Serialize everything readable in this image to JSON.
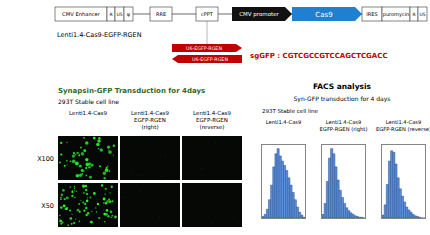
{
  "vector": {
    "elements": [
      "CMV Enhancer",
      "R",
      "U5",
      "ψ",
      "RRE",
      "cPPT",
      "CMV promoter",
      "Cas9",
      "IRES",
      "puromycin",
      "R",
      "U5"
    ],
    "label": "Lenti1.4-Cas9-EGFP-RGEN",
    "inserts": [
      "U6-EGFP-RGEN",
      "U6-EGFP-RGEN"
    ],
    "sgRNA": "sgGFP : CGTCGCCGTCCAGCTCGACC"
  },
  "microscopy": {
    "title": "Synapsin-GFP Transduction for 4days",
    "subtitle": "293T Stable cell line",
    "columns": [
      [
        "Lenti1.4-Cas9"
      ],
      [
        "Lenti1.4-Cas9",
        "EGFP-RGEN",
        "(right)"
      ],
      [
        "Lenti1.4-Cas9",
        "EGFP-RGEN",
        "(reverse)"
      ]
    ],
    "rows": [
      "X100",
      "X50"
    ]
  },
  "facs": {
    "title": "FACS analysis",
    "subtitle": "Syn-GFP transduction for 4 days",
    "cell_line": "293T Stable cell line"
  },
  "chart_data": [
    {
      "type": "histogram",
      "title": [
        "Lenti1.4-Cas9"
      ],
      "bins": [
        0,
        50,
        100,
        150,
        200,
        250,
        300,
        350,
        400,
        450,
        500,
        550,
        600,
        650,
        700,
        750,
        800,
        850,
        900,
        950,
        1000
      ],
      "values": [
        2,
        5,
        12,
        25,
        45,
        70,
        88,
        95,
        85,
        78,
        72,
        65,
        55,
        45,
        35,
        25,
        15,
        8,
        4,
        1
      ],
      "xlim": [
        0,
        1000
      ],
      "ylim": [
        0,
        100
      ],
      "color": "#5b8fd9",
      "tick_labels": false,
      "grid": false
    },
    {
      "type": "histogram",
      "title": [
        "Lenti1.4-Cas9",
        "EGFP-RGEN (right)"
      ],
      "bins": [
        0,
        50,
        100,
        150,
        200,
        250,
        300,
        350,
        400,
        450,
        500,
        550,
        600,
        650,
        700,
        750,
        800,
        850,
        900,
        950,
        1000
      ],
      "values": [
        5,
        20,
        50,
        82,
        95,
        88,
        70,
        52,
        38,
        28,
        20,
        14,
        10,
        7,
        5,
        3,
        2,
        1,
        1,
        0
      ],
      "xlim": [
        0,
        1000
      ],
      "ylim": [
        0,
        100
      ],
      "color": "#5b8fd9",
      "tick_labels": false,
      "grid": false
    },
    {
      "type": "histogram",
      "title": [
        "Lenti1.4-Cas9",
        "EGFP-RGEN (reverse)"
      ],
      "bins": [
        0,
        50,
        100,
        150,
        200,
        250,
        300,
        350,
        400,
        450,
        500,
        550,
        600,
        650,
        700,
        750,
        800,
        850,
        900,
        950,
        1000
      ],
      "values": [
        4,
        18,
        46,
        78,
        92,
        90,
        74,
        55,
        40,
        30,
        22,
        15,
        11,
        8,
        5,
        3,
        2,
        1,
        0,
        0
      ],
      "xlim": [
        0,
        1000
      ],
      "ylim": [
        0,
        100
      ],
      "color": "#5b8fd9",
      "tick_labels": false,
      "grid": false
    }
  ]
}
